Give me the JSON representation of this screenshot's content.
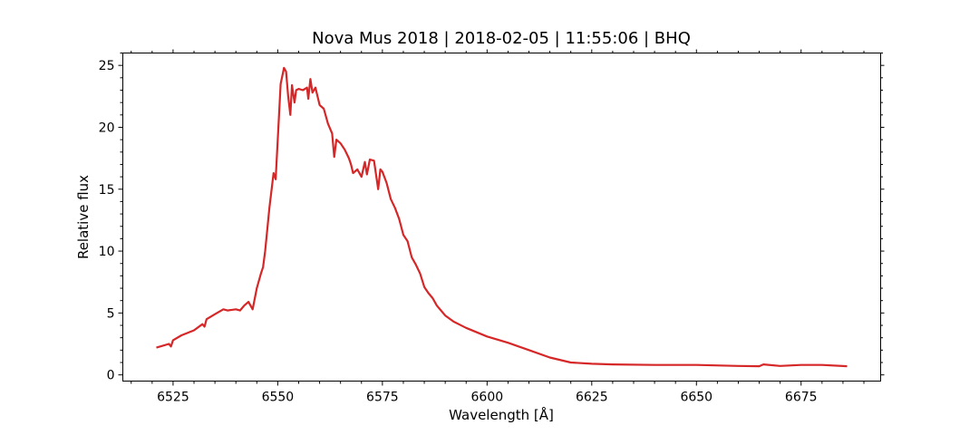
{
  "chart_data": {
    "type": "line",
    "title": "Nova Mus 2018 | 2018-02-05 | 11:55:06 | BHQ",
    "xlabel": "Wavelength [Å]",
    "ylabel": "Relative flux",
    "xlim": [
      6513,
      6694
    ],
    "ylim": [
      -0.5,
      26
    ],
    "xticks": [
      6525,
      6550,
      6575,
      6600,
      6625,
      6650,
      6675
    ],
    "xtick_labels": [
      "6525",
      "6550",
      "6575",
      "6600",
      "6625",
      "6650",
      "6675"
    ],
    "yticks": [
      0,
      5,
      10,
      15,
      20,
      25
    ],
    "ytick_labels": [
      "0",
      "5",
      "10",
      "15",
      "20",
      "25"
    ],
    "grid": false,
    "color": "#d62728",
    "series": [
      {
        "x": [
          6521,
          6524,
          6524.5,
          6525,
          6527,
          6530,
          6532,
          6532.5,
          6533,
          6535,
          6537,
          6538,
          6540,
          6541,
          6542,
          6543,
          6544,
          6545,
          6546,
          6546.5,
          6547,
          6548,
          6549,
          6549.5,
          6550,
          6550.7,
          6551.5,
          6552,
          6552.5,
          6553,
          6553.4,
          6554,
          6554.4,
          6555,
          6556,
          6557,
          6557.3,
          6557.8,
          6558.3,
          6559,
          6560,
          6561,
          6562,
          6563,
          6563.5,
          6564,
          6565,
          6566,
          6567,
          6567.5,
          6568,
          6569,
          6570,
          6570.8,
          6571.3,
          6572,
          6573,
          6574,
          6574.5,
          6575,
          6576,
          6577,
          6578,
          6579,
          6580,
          6581,
          6582,
          6583,
          6584,
          6585,
          6586,
          6587,
          6588,
          6589,
          6590,
          6592,
          6595,
          6600,
          6605,
          6610,
          6615,
          6620,
          6625,
          6630,
          6640,
          6650,
          6660,
          6665,
          6666,
          6670,
          6675,
          6680,
          6686
        ],
        "y": [
          2.2,
          2.5,
          2.3,
          2.8,
          3.2,
          3.6,
          4.1,
          3.9,
          4.5,
          4.9,
          5.3,
          5.2,
          5.3,
          5.2,
          5.6,
          5.9,
          5.3,
          7.0,
          8.2,
          8.7,
          10.0,
          13.5,
          16.3,
          15.8,
          19.0,
          23.5,
          24.8,
          24.5,
          22.5,
          21.0,
          23.4,
          22.0,
          23.0,
          23.1,
          23.0,
          23.2,
          22.3,
          23.9,
          22.8,
          23.2,
          21.8,
          21.5,
          20.3,
          19.5,
          17.6,
          19.0,
          18.7,
          18.2,
          17.5,
          17.0,
          16.3,
          16.6,
          16.0,
          17.2,
          16.2,
          17.4,
          17.3,
          15.0,
          16.6,
          16.4,
          15.5,
          14.2,
          13.5,
          12.6,
          11.3,
          10.8,
          9.5,
          8.9,
          8.2,
          7.1,
          6.6,
          6.2,
          5.6,
          5.2,
          4.8,
          4.3,
          3.8,
          3.1,
          2.6,
          2.0,
          1.4,
          1.0,
          0.9,
          0.85,
          0.8,
          0.8,
          0.72,
          0.7,
          0.85,
          0.72,
          0.8,
          0.8,
          0.7
        ]
      }
    ]
  }
}
